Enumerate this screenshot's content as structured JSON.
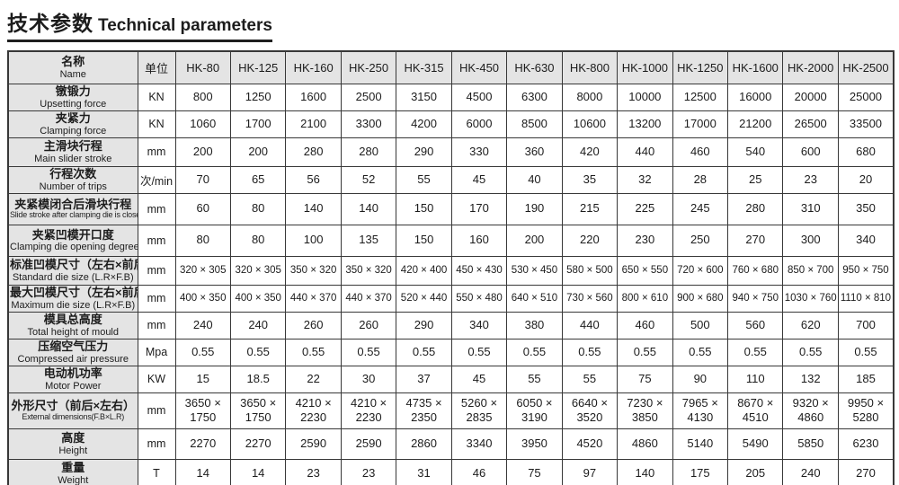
{
  "title": {
    "zh": "技术参数",
    "en": "Technical parameters"
  },
  "table": {
    "name_header": {
      "zh": "名称",
      "en": "Name"
    },
    "unit_header": "单位",
    "models": [
      "HK-80",
      "HK-125",
      "HK-160",
      "HK-250",
      "HK-315",
      "HK-450",
      "HK-630",
      "HK-800",
      "HK-1000",
      "HK-1250",
      "HK-1600",
      "HK-2000",
      "HK-2500"
    ],
    "rows": [
      {
        "zh": "镦锻力",
        "en": "Upsetting force",
        "unit": "KN",
        "values": [
          "800",
          "1250",
          "1600",
          "2500",
          "3150",
          "4500",
          "6300",
          "8000",
          "10000",
          "12500",
          "16000",
          "20000",
          "25000"
        ]
      },
      {
        "zh": "夹紧力",
        "en": "Clamping force",
        "unit": "KN",
        "values": [
          "1060",
          "1700",
          "2100",
          "3300",
          "4200",
          "6000",
          "8500",
          "10600",
          "13200",
          "17000",
          "21200",
          "26500",
          "33500"
        ]
      },
      {
        "zh": "主滑块行程",
        "en": "Main slider stroke",
        "unit": "mm",
        "values": [
          "200",
          "200",
          "280",
          "280",
          "290",
          "330",
          "360",
          "420",
          "440",
          "460",
          "540",
          "600",
          "680"
        ]
      },
      {
        "zh": "行程次数",
        "en": "Number of trips",
        "unit": "次/min",
        "values": [
          "70",
          "65",
          "56",
          "52",
          "55",
          "45",
          "40",
          "35",
          "32",
          "28",
          "25",
          "23",
          "20"
        ]
      },
      {
        "zh": "夹紧模闭合后滑块行程",
        "en": "Slide stroke after clamping die is closed",
        "unit": "mm",
        "en_small": true,
        "values": [
          "60",
          "80",
          "140",
          "140",
          "150",
          "170",
          "190",
          "215",
          "225",
          "245",
          "280",
          "310",
          "350"
        ]
      },
      {
        "zh": "夹紧凹模开口度",
        "en": "Clamping die opening degree",
        "unit": "mm",
        "values": [
          "80",
          "80",
          "100",
          "135",
          "150",
          "160",
          "200",
          "220",
          "230",
          "250",
          "270",
          "300",
          "340"
        ]
      },
      {
        "zh": "标准凹模尺寸（左右×前后）",
        "en": "Standard die size (L.R×F.B)",
        "unit": "mm",
        "val_small": true,
        "values": [
          "320 × 305",
          "320 × 305",
          "350 × 320",
          "350 × 320",
          "420 × 400",
          "450 × 430",
          "530 × 450",
          "580 × 500",
          "650 × 550",
          "720 × 600",
          "760 × 680",
          "850 × 700",
          "950 × 750"
        ]
      },
      {
        "zh": "最大凹模尺寸（左右×前后）",
        "en": "Maximum die size (L.R×F.B)",
        "unit": "mm",
        "val_small": true,
        "values": [
          "400 × 350",
          "400 × 350",
          "440 × 370",
          "440 × 370",
          "520 × 440",
          "550 × 480",
          "640 × 510",
          "730 × 560",
          "800 × 610",
          "900 × 680",
          "940 × 750",
          "1030 × 760",
          "1110 × 810"
        ]
      },
      {
        "zh": "模具总高度",
        "en": "Total height of mould",
        "unit": "mm",
        "values": [
          "240",
          "240",
          "260",
          "260",
          "290",
          "340",
          "380",
          "440",
          "460",
          "500",
          "560",
          "620",
          "700"
        ]
      },
      {
        "zh": "压缩空气压力",
        "en": "Compressed air pressure",
        "unit": "Mpa",
        "values": [
          "0.55",
          "0.55",
          "0.55",
          "0.55",
          "0.55",
          "0.55",
          "0.55",
          "0.55",
          "0.55",
          "0.55",
          "0.55",
          "0.55",
          "0.55"
        ]
      },
      {
        "zh": "电动机功率",
        "en": "Motor Power",
        "unit": "KW",
        "values": [
          "15",
          "18.5",
          "22",
          "30",
          "37",
          "45",
          "55",
          "55",
          "75",
          "90",
          "110",
          "132",
          "185"
        ]
      },
      {
        "zh": "外形尺寸（前后×左右）",
        "en": "External dimensions(F.B×L.R)",
        "unit": "mm",
        "en_small": true,
        "values": [
          "3650 ×\n1750",
          "3650 ×\n1750",
          "4210 ×\n2230",
          "4210 ×\n2230",
          "4735 ×\n2350",
          "5260 ×\n2835",
          "6050 ×\n3190",
          "6640 ×\n3520",
          "7230 ×\n3850",
          "7965 ×\n4130",
          "8670 ×\n4510",
          "9320 ×\n4860",
          "9950 ×\n5280"
        ]
      },
      {
        "zh": "高度",
        "en": "Height",
        "unit": "mm",
        "values": [
          "2270",
          "2270",
          "2590",
          "2590",
          "2860",
          "3340",
          "3950",
          "4520",
          "4860",
          "5140",
          "5490",
          "5850",
          "6230"
        ]
      },
      {
        "zh": "重量",
        "en": "Weight",
        "unit": "T",
        "values": [
          "14",
          "14",
          "23",
          "23",
          "31",
          "46",
          "75",
          "97",
          "140",
          "175",
          "205",
          "240",
          "270"
        ]
      }
    ]
  }
}
